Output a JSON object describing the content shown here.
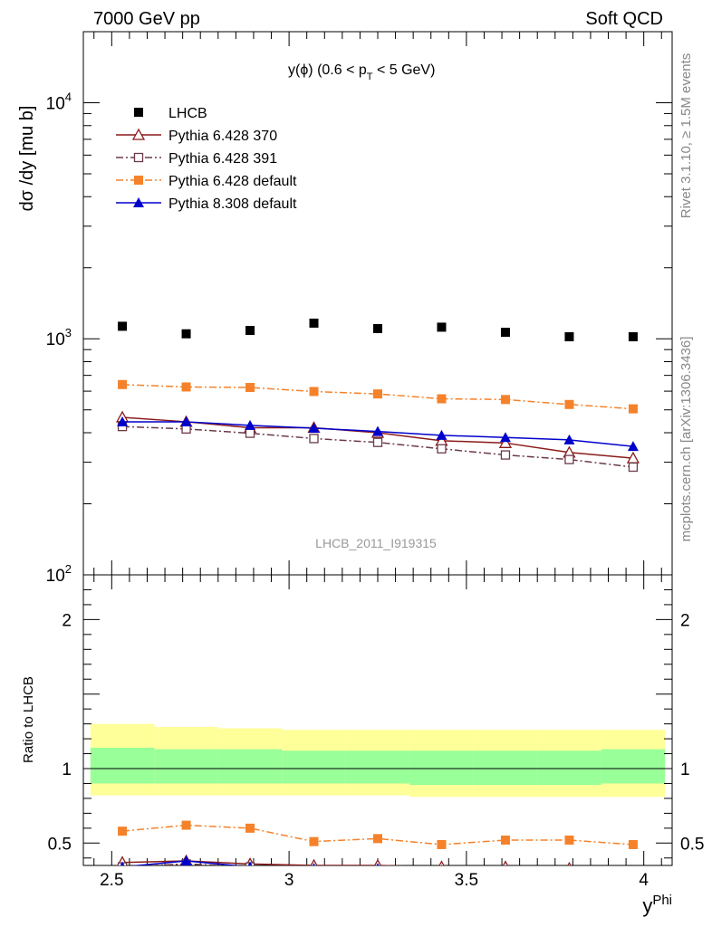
{
  "header": {
    "left": "7000 GeV pp",
    "right": "Soft QCD"
  },
  "side_labels": {
    "rivet": "Rivet 3.1.10, ≥ 1.5M events",
    "mcplots": "mcplots.cern.ch [arXiv:1306.3436]"
  },
  "plot_title": {
    "main": "y(ϕ) (0.6 < p",
    "sub": "T",
    "tail": " < 5 GeV)"
  },
  "analysis_id": "LHCB_2011_I919315",
  "chart_data": [
    {
      "type": "scatter",
      "panel": "main",
      "ylabel": "dσ /dy [mu b]",
      "yscale": "log",
      "ylim": [
        100,
        20000
      ],
      "xlim": [
        2.42,
        4.08
      ],
      "ytick_labels": [
        "10^2",
        "10^3",
        "10^4"
      ],
      "x": [
        2.53,
        2.71,
        2.89,
        3.07,
        3.25,
        3.43,
        3.61,
        3.79,
        3.97
      ],
      "series": [
        {
          "name": "LHCB",
          "color": "#000000",
          "marker": "filled-square",
          "line": "none",
          "values": [
            1130,
            1050,
            1085,
            1165,
            1105,
            1120,
            1065,
            1020,
            1020
          ]
        },
        {
          "name": "Pythia 6.428 370",
          "color": "#8b1a1a",
          "marker": "open-triangle",
          "line": "solid",
          "values": [
            465,
            445,
            420,
            420,
            400,
            370,
            362,
            330,
            312
          ]
        },
        {
          "name": "Pythia 6.428 391",
          "color": "#6b3a48",
          "marker": "open-square",
          "line": "dashdot",
          "values": [
            425,
            415,
            398,
            378,
            364,
            342,
            322,
            308,
            286
          ]
        },
        {
          "name": "Pythia 6.428 default",
          "color": "#f5822a",
          "marker": "filled-square",
          "line": "dashdot",
          "values": [
            640,
            625,
            622,
            598,
            584,
            557,
            553,
            527,
            505
          ]
        },
        {
          "name": "Pythia 8.308 default",
          "color": "#0000cc",
          "marker": "filled-triangle",
          "line": "solid",
          "values": [
            445,
            445,
            430,
            418,
            405,
            390,
            382,
            373,
            350
          ]
        }
      ]
    },
    {
      "type": "line",
      "panel": "ratio",
      "ylabel": "Ratio to LHCB",
      "xlabel": "y^Phi",
      "ylim": [
        0.35,
        2.3
      ],
      "xlim": [
        2.42,
        4.08
      ],
      "x_tick_labels": [
        "2.5",
        "3",
        "3.5",
        "4"
      ],
      "y_tick_labels": [
        "0.5",
        "1",
        "2"
      ],
      "bands": {
        "bin_edges": [
          2.44,
          2.62,
          2.8,
          2.98,
          3.16,
          3.34,
          3.52,
          3.7,
          3.88,
          4.06
        ],
        "outer": {
          "color": "#ffff99",
          "lo": [
            0.82,
            0.82,
            0.82,
            0.82,
            0.82,
            0.81,
            0.81,
            0.81,
            0.81
          ],
          "hi": [
            1.3,
            1.28,
            1.27,
            1.26,
            1.26,
            1.26,
            1.26,
            1.26,
            1.26
          ]
        },
        "inner": {
          "color": "#99ff99",
          "lo": [
            0.9,
            0.9,
            0.9,
            0.9,
            0.9,
            0.89,
            0.89,
            0.89,
            0.9
          ],
          "hi": [
            1.14,
            1.13,
            1.13,
            1.12,
            1.12,
            1.12,
            1.12,
            1.12,
            1.13
          ]
        }
      },
      "x": [
        2.53,
        2.71,
        2.89,
        3.07,
        3.25,
        3.43,
        3.61,
        3.79,
        3.97
      ],
      "series": [
        {
          "name": "Pythia 6.428 370",
          "color": "#8b1a1a",
          "marker": "open-triangle",
          "line": "solid",
          "values": [
            0.37,
            0.38,
            0.36,
            0.35,
            0.35,
            0.34,
            0.34,
            0.33,
            0.31
          ]
        },
        {
          "name": "Pythia 6.428 391",
          "color": "#6b3a48",
          "marker": "open-square",
          "line": "dashdot",
          "values": [
            0.34,
            0.36,
            0.34,
            0.32,
            0.32,
            0.31,
            0.3,
            0.3,
            0.28
          ]
        },
        {
          "name": "Pythia 6.428 default",
          "color": "#f5822a",
          "marker": "filled-square",
          "line": "dashdot",
          "values": [
            0.58,
            0.62,
            0.6,
            0.51,
            0.53,
            0.49,
            0.52,
            0.52,
            0.49
          ]
        },
        {
          "name": "Pythia 8.308 default",
          "color": "#0000cc",
          "marker": "filled-triangle",
          "line": "solid",
          "values": [
            0.34,
            0.38,
            0.34,
            0.33,
            0.33,
            0.32,
            0.32,
            0.31,
            0.3
          ]
        }
      ]
    }
  ]
}
